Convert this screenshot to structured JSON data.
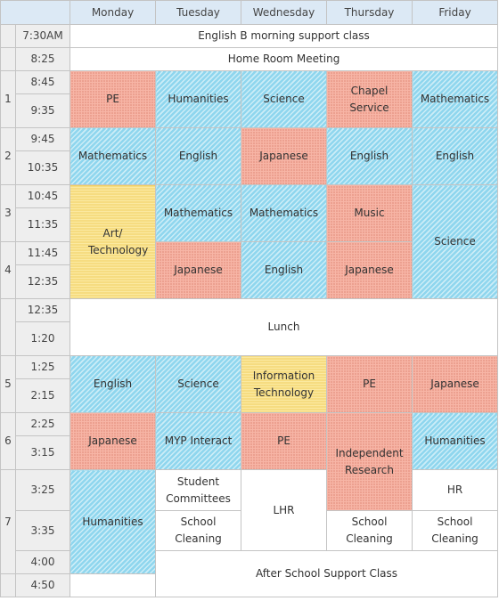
{
  "days": [
    "Monday",
    "Tuesday",
    "Wednesday",
    "Thursday",
    "Friday"
  ],
  "periods": [
    "1",
    "2",
    "3",
    "4",
    "5",
    "6",
    "7"
  ],
  "times": [
    "7:30AM",
    "8:25",
    "8:45",
    "9:35",
    "9:45",
    "10:35",
    "10:45",
    "11:35",
    "11:45",
    "12:35",
    "12:35",
    "1:20",
    "1:25",
    "2:15",
    "2:25",
    "3:15",
    "3:25",
    "3:35",
    "4:00",
    "4:50"
  ],
  "full_width": {
    "morning": "English B morning support class",
    "homeroom": "Home Room Meeting",
    "lunch": "Lunch",
    "after_school": "After School Support Class"
  },
  "classes": {
    "p1": {
      "mon": "PE",
      "tue": "Humanities",
      "wed": "Science",
      "thu": "Chapel Service",
      "fri": "Mathematics"
    },
    "p2": {
      "mon": "Mathematics",
      "tue": "English",
      "wed": "Japanese",
      "thu": "English",
      "fri": "English"
    },
    "p3": {
      "mon": "Art/ Technology",
      "tue": "Mathematics",
      "wed": "Mathematics",
      "thu": "Music",
      "fri": "Science"
    },
    "p4": {
      "tue": "Japanese",
      "wed": "English",
      "thu": "Japanese"
    },
    "p5": {
      "mon": "English",
      "tue": "Science",
      "wed": "Information Technology",
      "thu": "PE",
      "fri": "Japanese"
    },
    "p6": {
      "mon": "Japanese",
      "tue": "MYP Interact",
      "wed": "PE",
      "thu": "Independent Research",
      "fri": "Humanities"
    },
    "p7": {
      "mon": "Humanities",
      "tue_a": "Student Committees",
      "tue_b": "School Cleaning",
      "wed": "LHR",
      "thu": "School Cleaning",
      "fri_a": "HR",
      "fri_b": "School Cleaning"
    }
  },
  "colors": {
    "header": "#dce9f5",
    "time": "#eeeeee",
    "blue": "#8fd6ee",
    "red": "#f7b5a6",
    "yellow": "#fbe9a0",
    "border": "#c4c4c4"
  }
}
